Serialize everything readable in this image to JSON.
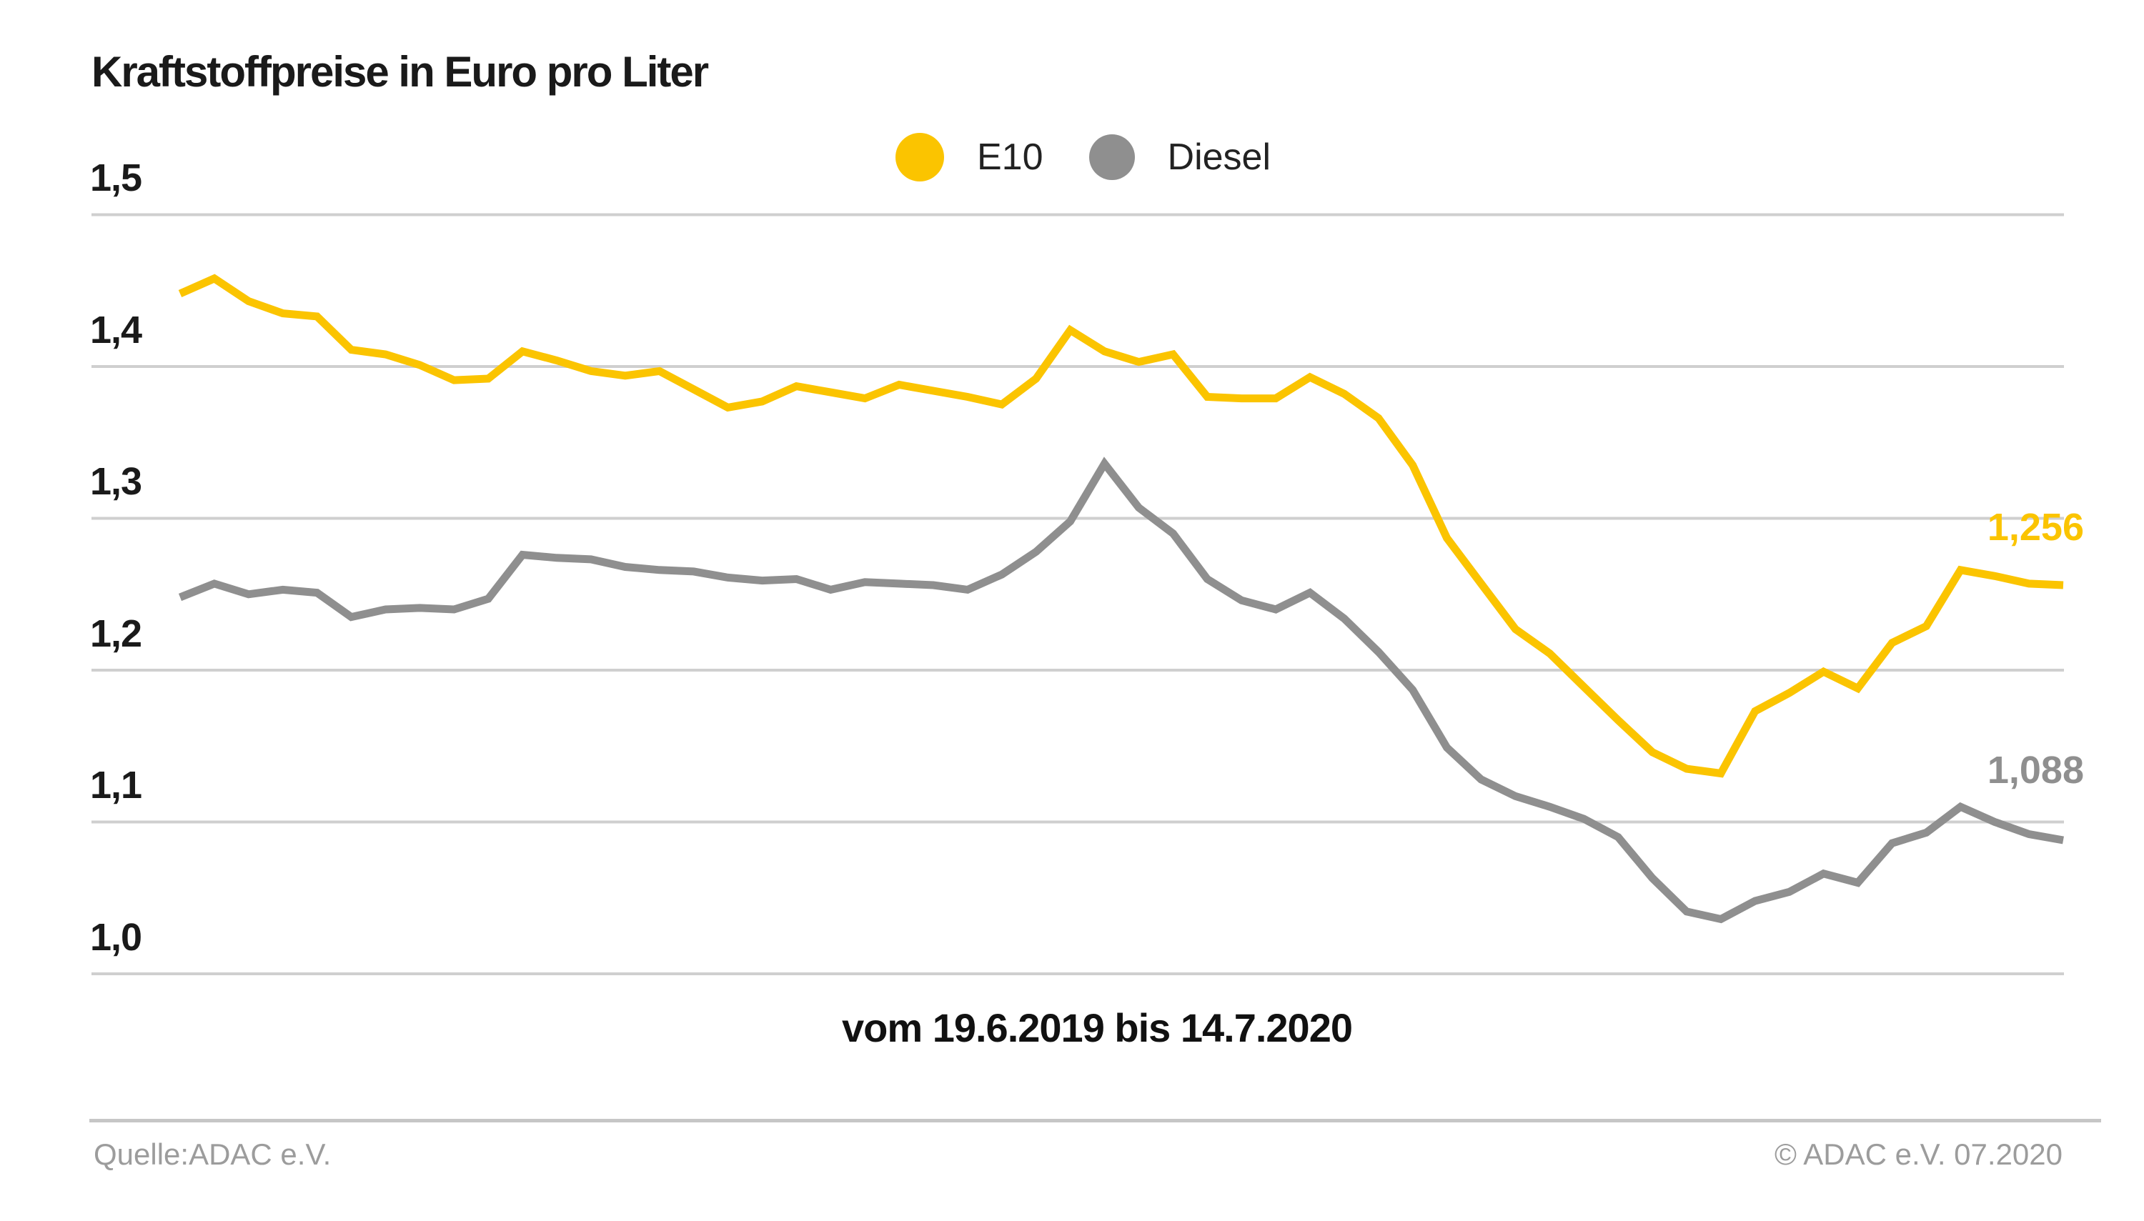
{
  "header": {
    "title": "Kraftstoffpreise in Euro pro Liter"
  },
  "footer": {
    "source": "Quelle:ADAC e.V.",
    "copyright": "© ADAC e.V. 07.2020"
  },
  "chart_data": {
    "type": "line",
    "title": "Kraftstoffpreise in Euro pro Liter",
    "period_label": "vom 19.6.2019 bis 14.7.2020",
    "x_start": "19.6.2019",
    "x_end": "14.7.2020",
    "x_unit": "Woche",
    "ylabel": "Euro pro Liter",
    "ylim": [
      1.0,
      1.5
    ],
    "grid": true,
    "grid_color": "#cfcfcf",
    "yticks": [
      1.5,
      1.4,
      1.3,
      1.2,
      1.1,
      1.0
    ],
    "ytick_labels": [
      "1,5",
      "1,4",
      "1,3",
      "1,2",
      "1,1",
      "1,0"
    ],
    "legend_position": "top-center",
    "series": [
      {
        "name": "E10",
        "color": "#fbc400",
        "end_label": "1,256",
        "end_value": 1.256,
        "values": [
          1.448,
          1.458,
          1.443,
          1.435,
          1.433,
          1.411,
          1.408,
          1.401,
          1.391,
          1.392,
          1.41,
          1.404,
          1.397,
          1.394,
          1.397,
          1.385,
          1.373,
          1.377,
          1.387,
          1.383,
          1.379,
          1.388,
          1.384,
          1.38,
          1.375,
          1.392,
          1.424,
          1.41,
          1.403,
          1.408,
          1.38,
          1.379,
          1.379,
          1.393,
          1.382,
          1.366,
          1.335,
          1.287,
          1.257,
          1.227,
          1.211,
          1.189,
          1.167,
          1.146,
          1.135,
          1.132,
          1.173,
          1.185,
          1.199,
          1.188,
          1.218,
          1.229,
          1.266,
          1.262,
          1.257,
          1.256
        ]
      },
      {
        "name": "Diesel",
        "color": "#8f8f8f",
        "end_label": "1,088",
        "end_value": 1.088,
        "values": [
          1.248,
          1.257,
          1.25,
          1.253,
          1.251,
          1.235,
          1.24,
          1.241,
          1.24,
          1.247,
          1.276,
          1.274,
          1.273,
          1.268,
          1.266,
          1.265,
          1.261,
          1.259,
          1.26,
          1.253,
          1.258,
          1.257,
          1.256,
          1.253,
          1.263,
          1.278,
          1.298,
          1.336,
          1.307,
          1.29,
          1.26,
          1.246,
          1.24,
          1.251,
          1.234,
          1.212,
          1.187,
          1.149,
          1.128,
          1.117,
          1.11,
          1.102,
          1.09,
          1.063,
          1.041,
          1.036,
          1.048,
          1.054,
          1.066,
          1.06,
          1.086,
          1.093,
          1.11,
          1.1,
          1.092,
          1.088
        ]
      }
    ]
  }
}
